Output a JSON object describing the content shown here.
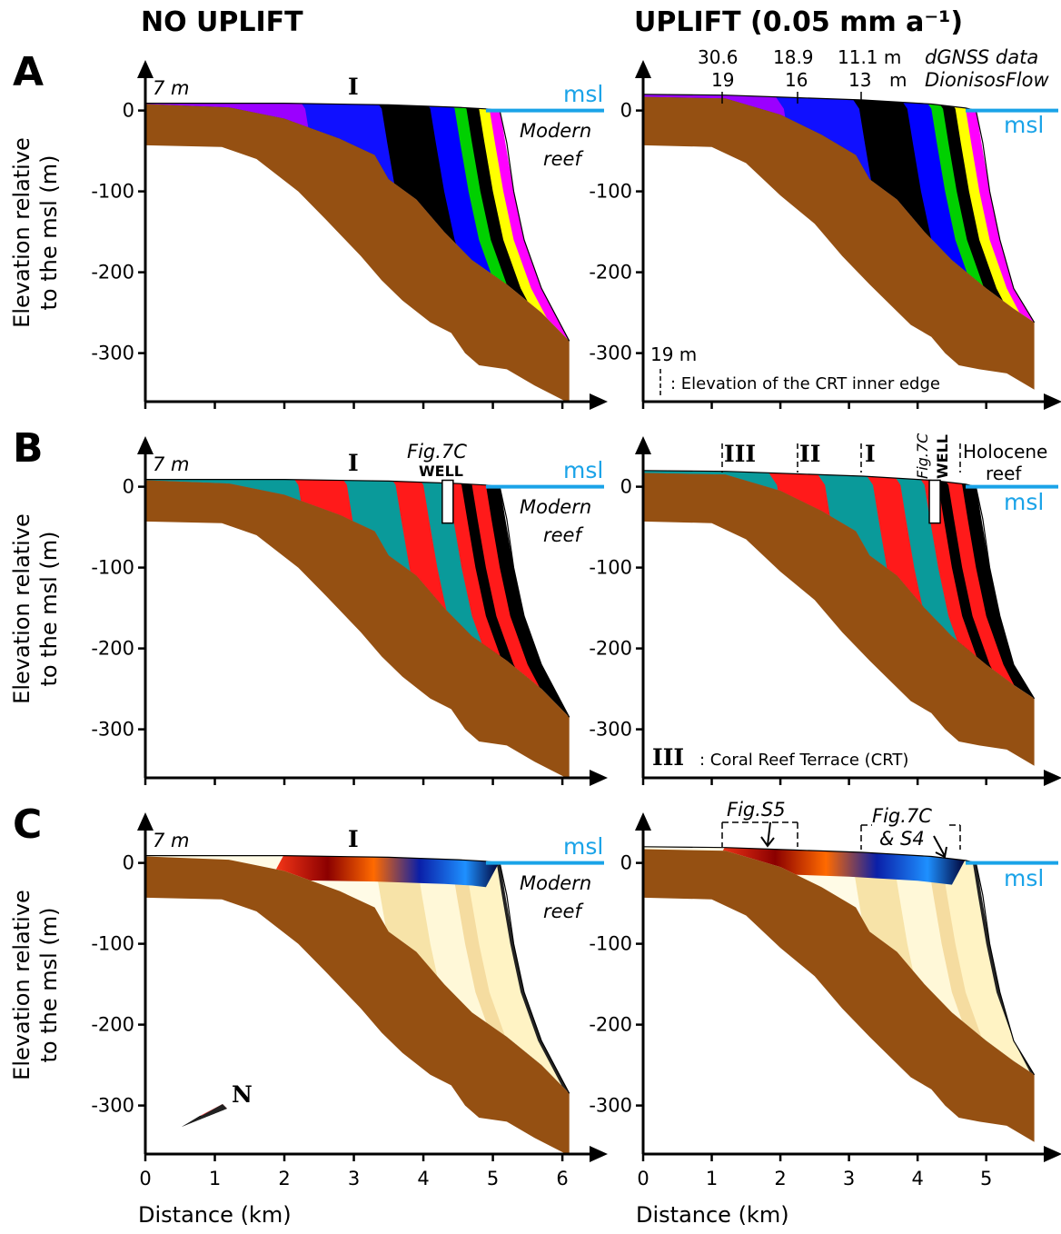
{
  "headers": [
    "NO UPLIFT",
    "UPLIFT (0.05 mm a⁻¹)"
  ],
  "y_axis_label": [
    "Elevation relative",
    "to the msl (m)"
  ],
  "x_axis_label": "Distance (km)",
  "ylim": [
    -360,
    58
  ],
  "yticks": [
    0,
    -100,
    -200,
    -300
  ],
  "xlim_left": [
    0,
    6.6
  ],
  "xticks_left": [
    0,
    1,
    2,
    3,
    4,
    5,
    6
  ],
  "xlim_right": [
    0,
    6.05
  ],
  "xticks_right": [
    0,
    1,
    2,
    3,
    4,
    5
  ],
  "panels": [
    {
      "label": "A",
      "left": [
        "7 m",
        "I",
        "msl",
        "Modern",
        "reef"
      ],
      "right": [
        "30.6",
        "18.9",
        "11.1 m",
        "dGNSS data",
        "19",
        "16",
        "13",
        "m",
        "DionisosFlow",
        "msl",
        "19 m",
        ": Elevation of the CRT inner edge"
      ]
    },
    {
      "label": "B",
      "left": [
        "7 m",
        "I",
        "msl",
        "Modern",
        "reef",
        "Fig.7C",
        "WELL"
      ],
      "right": [
        "III",
        "II",
        "I",
        "Fig.7C",
        "WELL",
        "Holocene",
        "reef",
        "msl",
        "III",
        ": Coral Reef Terrace (CRT)"
      ]
    },
    {
      "label": "C",
      "left": [
        "7 m",
        "I",
        "msl",
        "Modern",
        "reef",
        "N"
      ],
      "right": [
        "Fig.S5",
        "Fig.7C",
        "& S4",
        "msl"
      ]
    }
  ]
}
